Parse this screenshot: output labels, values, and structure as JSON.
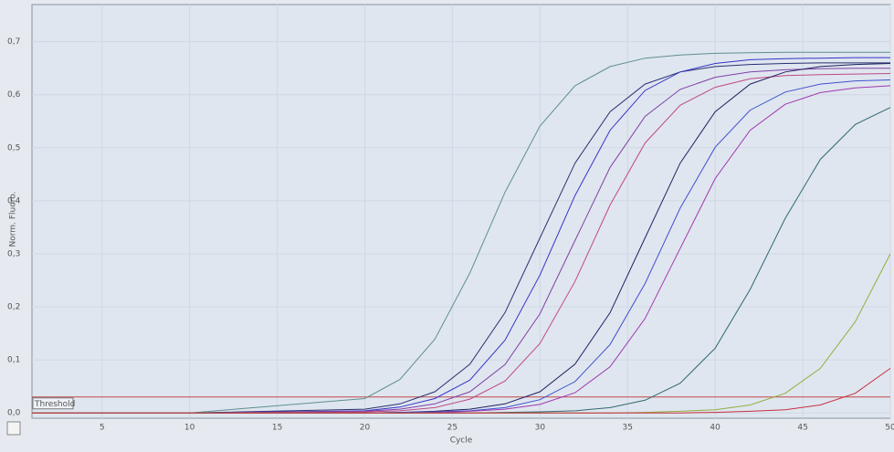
{
  "chart_data": {
    "type": "line",
    "y_label": "Norm. Fluoro.",
    "x_label": "Cycle",
    "x": [
      1,
      10,
      20,
      22,
      24,
      26,
      28,
      30,
      32,
      34,
      36,
      38,
      40,
      42,
      44,
      46,
      48,
      50
    ],
    "xlim": [
      1,
      50
    ],
    "xticks": [
      5,
      10,
      15,
      20,
      25,
      30,
      35,
      40,
      45,
      50
    ],
    "ylim": [
      -0.01,
      0.77
    ],
    "yticks": [
      {
        "value": 0,
        "label": "0,0"
      },
      {
        "value": 0.1,
        "label": "0,1"
      },
      {
        "value": 0.2,
        "label": "0,2"
      },
      {
        "value": 0.3,
        "label": "0,3"
      },
      {
        "value": 0.4,
        "label": "0,4"
      },
      {
        "value": 0.5,
        "label": "0,5"
      },
      {
        "value": 0.6,
        "label": "0,6"
      },
      {
        "value": 0.7,
        "label": "0,7"
      }
    ],
    "grid": true,
    "threshold": {
      "value": 0.03,
      "label": "Threshold",
      "color": "#c04848"
    },
    "series": [
      {
        "color": "#5f8f90",
        "values": [
          0,
          0,
          0.027,
          0.063,
          0.139,
          0.264,
          0.416,
          0.541,
          0.617,
          0.653,
          0.669,
          0.675,
          0.678,
          0.679,
          0.68,
          0.68,
          0.68,
          0.68
        ]
      },
      {
        "color": "#283070",
        "values": [
          0,
          0,
          0.007,
          0.017,
          0.04,
          0.092,
          0.189,
          0.33,
          0.471,
          0.568,
          0.62,
          0.643,
          0.653,
          0.657,
          0.659,
          0.66,
          0.66,
          0.66
        ]
      },
      {
        "color": "#3434c8",
        "values": [
          0,
          0,
          0.004,
          0.011,
          0.027,
          0.062,
          0.137,
          0.26,
          0.41,
          0.533,
          0.608,
          0.643,
          0.659,
          0.666,
          0.668,
          0.669,
          0.67,
          0.67
        ]
      },
      {
        "color": "#8040a8",
        "values": [
          0,
          0,
          0.003,
          0.007,
          0.017,
          0.04,
          0.091,
          0.187,
          0.325,
          0.463,
          0.559,
          0.61,
          0.633,
          0.643,
          0.647,
          0.649,
          0.65,
          0.65
        ]
      },
      {
        "color": "#c04888",
        "values": [
          0,
          0,
          0.002,
          0.004,
          0.01,
          0.026,
          0.06,
          0.131,
          0.248,
          0.392,
          0.509,
          0.58,
          0.614,
          0.63,
          0.636,
          0.638,
          0.639,
          0.64
        ]
      },
      {
        "color": "#202060",
        "values": [
          0,
          0,
          0,
          0.001,
          0.003,
          0.007,
          0.017,
          0.04,
          0.092,
          0.189,
          0.33,
          0.471,
          0.568,
          0.62,
          0.643,
          0.653,
          0.657,
          0.659
        ]
      },
      {
        "color": "#4050d0",
        "values": [
          0,
          0,
          0,
          0.001,
          0.002,
          0.004,
          0.01,
          0.025,
          0.059,
          0.129,
          0.244,
          0.386,
          0.501,
          0.571,
          0.605,
          0.62,
          0.626,
          0.628
        ]
      },
      {
        "color": "#a038b0",
        "values": [
          0,
          0,
          0,
          0,
          0.001,
          0.003,
          0.007,
          0.016,
          0.038,
          0.087,
          0.178,
          0.31,
          0.442,
          0.533,
          0.582,
          0.604,
          0.613,
          0.617
        ]
      },
      {
        "color": "#306870",
        "values": [
          0,
          0,
          0,
          0,
          0,
          0,
          0.001,
          0.002,
          0.004,
          0.01,
          0.024,
          0.056,
          0.122,
          0.233,
          0.367,
          0.478,
          0.544,
          0.576
        ]
      },
      {
        "color": "#90b040",
        "values": [
          0,
          0,
          0,
          0,
          0,
          0,
          0,
          0,
          0,
          0,
          0.001,
          0.003,
          0.006,
          0.015,
          0.037,
          0.084,
          0.172,
          0.3
        ]
      },
      {
        "color": "#c83040",
        "values": [
          0,
          0,
          0,
          0,
          0,
          0,
          0,
          0,
          0,
          0,
          0,
          0,
          0.001,
          0.003,
          0.006,
          0.015,
          0.037,
          0.084
        ]
      }
    ]
  }
}
